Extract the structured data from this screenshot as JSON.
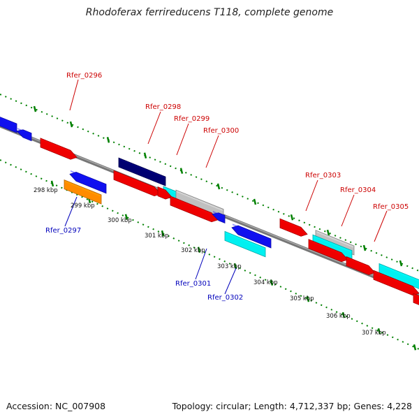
{
  "title": "Rhodoferax ferrireducens T118, complete genome",
  "footer": {
    "accession": "Accession: NC_007908",
    "topology": "Topology: circular; Length: 4,712,337 bp; Genes: 4,228"
  },
  "colors": {
    "forward_label": "#cc0000",
    "reverse_label": "#0000bb",
    "red": "#ee0000",
    "blue": "#1010ee",
    "navy": "#000070",
    "cyan": "#00f0f0",
    "gray": "#c0c0c0",
    "orange": "#ff8c00",
    "tick": "#008000",
    "backbone": "#777777"
  },
  "tick_labels": [
    {
      "label": "298 kbp"
    },
    {
      "label": "299 kbp"
    },
    {
      "label": "300 kbp"
    },
    {
      "label": "301 kbp"
    },
    {
      "label": "302 kbp"
    },
    {
      "label": "303 kbp"
    },
    {
      "label": "304 kbp"
    },
    {
      "label": "305 kbp"
    },
    {
      "label": "306 kbp"
    },
    {
      "label": "307 kbp"
    }
  ],
  "gene_labels": [
    {
      "id": "fwd-0296",
      "label": "Rfer_0296",
      "strand": "forward"
    },
    {
      "id": "fwd-0298",
      "label": "Rfer_0298",
      "strand": "forward"
    },
    {
      "id": "fwd-0299",
      "label": "Rfer_0299",
      "strand": "forward"
    },
    {
      "id": "fwd-0300",
      "label": "Rfer_0300",
      "strand": "forward"
    },
    {
      "id": "fwd-0303",
      "label": "Rfer_0303",
      "strand": "forward"
    },
    {
      "id": "fwd-0304",
      "label": "Rfer_0304",
      "strand": "forward"
    },
    {
      "id": "fwd-0305",
      "label": "Rfer_0305",
      "strand": "forward"
    },
    {
      "id": "rev-0297",
      "label": "Rfer_0297",
      "strand": "reverse"
    },
    {
      "id": "rev-0301",
      "label": "Rfer_0301",
      "strand": "reverse"
    },
    {
      "id": "rev-0302",
      "label": "Rfer_0302",
      "strand": "reverse"
    }
  ]
}
